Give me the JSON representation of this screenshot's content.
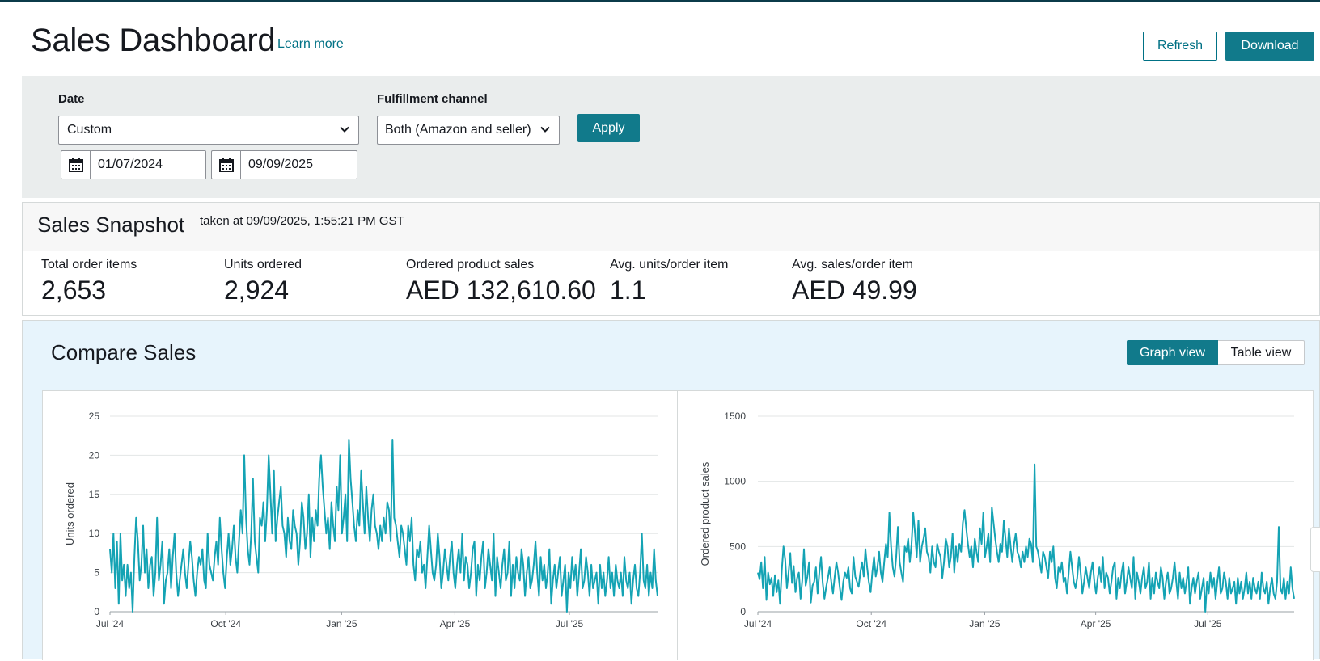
{
  "header": {
    "title": "Sales Dashboard",
    "learn_more": "Learn more",
    "refresh_label": "Refresh",
    "download_label": "Download"
  },
  "filters": {
    "date_label": "Date",
    "date_value": "Custom",
    "start_date": "01/07/2024",
    "end_date": "09/09/2025",
    "channel_label": "Fulfillment channel",
    "channel_value": "Both (Amazon and seller)",
    "apply_label": "Apply"
  },
  "snapshot": {
    "title": "Sales Snapshot",
    "taken_at": "taken at 09/09/2025, 1:55:21 PM GST",
    "metrics": [
      {
        "label": "Total order items",
        "value": "2,653"
      },
      {
        "label": "Units ordered",
        "value": "2,924"
      },
      {
        "label": "Ordered product sales",
        "value": "AED 132,610.60"
      },
      {
        "label": "Avg. units/order item",
        "value": "1.1"
      },
      {
        "label": "Avg. sales/order item",
        "value": "AED 49.99"
      }
    ]
  },
  "compare": {
    "title": "Compare Sales",
    "graph_view": "Graph view",
    "table_view": "Table view"
  },
  "colors": {
    "accent": "#117a8b",
    "line": "#14a3b4"
  },
  "chart_data": [
    {
      "type": "line",
      "ylabel": "Units ordered",
      "xlabel": "",
      "x_ticks": [
        "Jul '24",
        "Oct '24",
        "Jan '25",
        "Apr '25",
        "Jul '25"
      ],
      "y_ticks": [
        0,
        5,
        10,
        15,
        20,
        25
      ],
      "ylim": [
        0,
        25
      ],
      "x_range": [
        "2024-07-01",
        "2025-09-09"
      ],
      "grid": true,
      "series": [
        {
          "values": [
            8,
            5,
            10,
            3,
            9,
            1,
            10,
            4,
            6,
            2,
            6,
            3,
            5,
            0,
            7,
            12,
            9,
            4,
            6,
            11,
            5,
            8,
            3,
            6,
            7,
            2,
            5,
            12,
            4,
            6,
            9,
            1,
            4,
            5,
            8,
            3,
            7,
            10,
            5,
            2,
            4,
            6,
            8,
            5,
            3,
            6,
            9,
            7,
            4,
            2,
            5,
            7,
            6,
            8,
            4,
            3,
            10,
            6,
            5,
            4,
            7,
            9,
            6,
            12,
            8,
            5,
            3,
            7,
            10,
            6,
            8,
            11,
            7,
            5,
            9,
            13,
            10,
            20,
            12,
            8,
            6,
            10,
            17,
            9,
            7,
            5,
            12,
            11,
            14,
            9,
            13,
            20,
            15,
            10,
            18,
            9,
            12,
            14,
            16,
            11,
            10,
            7,
            12,
            9,
            8,
            13,
            11,
            10,
            6,
            9,
            14,
            12,
            8,
            10,
            15,
            7,
            12,
            9,
            13,
            11,
            17,
            20,
            16,
            13,
            10,
            12,
            8,
            14,
            11,
            9,
            16,
            13,
            20,
            10,
            12,
            15,
            9,
            22,
            17,
            14,
            11,
            9,
            13,
            11,
            18,
            14,
            10,
            16,
            12,
            9,
            13,
            15,
            11,
            10,
            8,
            11,
            9,
            12,
            10,
            14,
            13,
            9,
            22,
            12,
            11,
            9,
            7,
            11,
            10,
            8,
            6,
            11,
            9,
            12,
            6,
            4,
            8,
            7,
            9,
            5,
            6,
            3,
            7,
            11,
            8,
            5,
            4,
            6,
            10,
            7,
            3,
            5,
            8,
            6,
            4,
            7,
            9,
            5,
            3,
            6,
            8,
            5,
            10,
            4,
            7,
            6,
            3,
            5,
            8,
            9,
            2,
            6,
            4,
            7,
            9,
            3,
            5,
            8,
            6,
            4,
            10,
            2,
            7,
            5,
            3,
            6,
            8,
            4,
            5,
            9,
            2,
            6,
            3,
            7,
            5,
            4,
            8,
            6,
            2,
            5,
            7,
            3,
            4,
            6,
            9,
            5,
            2,
            7,
            4,
            6,
            3,
            5,
            8,
            1,
            4,
            6,
            3,
            5,
            7,
            2,
            4,
            6,
            0,
            5,
            3,
            7,
            4,
            6,
            2,
            5,
            8,
            3,
            4,
            7,
            5,
            2,
            6,
            3,
            4,
            5,
            1,
            6,
            3,
            5,
            2,
            4,
            7,
            3,
            5,
            2,
            6,
            4,
            3,
            5,
            2,
            7,
            4,
            3,
            5,
            1,
            4,
            6,
            3,
            2,
            5,
            10,
            4,
            3,
            6,
            2,
            5,
            3,
            8,
            4,
            2
          ]
        }
      ]
    },
    {
      "type": "line",
      "ylabel": "Ordered product sales",
      "xlabel": "",
      "x_ticks": [
        "Jul '24",
        "Oct '24",
        "Jan '25",
        "Apr '25",
        "Jul '25"
      ],
      "y_ticks": [
        0,
        500,
        1000,
        1500
      ],
      "ylim": [
        0,
        1500
      ],
      "x_range": [
        "2024-07-01",
        "2025-09-09"
      ],
      "grid": true,
      "series": [
        {
          "values": [
            300,
            250,
            380,
            180,
            420,
            90,
            300,
            210,
            260,
            120,
            280,
            150,
            240,
            60,
            320,
            500,
            400,
            180,
            300,
            450,
            220,
            350,
            150,
            260,
            300,
            100,
            240,
            480,
            200,
            270,
            380,
            70,
            200,
            230,
            340,
            140,
            300,
            420,
            220,
            100,
            190,
            260,
            340,
            230,
            140,
            270,
            380,
            300,
            180,
            90,
            230,
            300,
            260,
            340,
            180,
            140,
            420,
            270,
            230,
            190,
            300,
            380,
            270,
            480,
            340,
            230,
            150,
            300,
            420,
            270,
            340,
            460,
            300,
            230,
            380,
            520,
            420,
            760,
            500,
            340,
            270,
            420,
            650,
            380,
            300,
            230,
            500,
            460,
            560,
            380,
            520,
            760,
            600,
            420,
            700,
            380,
            500,
            560,
            640,
            460,
            420,
            300,
            500,
            380,
            340,
            520,
            460,
            420,
            260,
            380,
            560,
            500,
            340,
            420,
            600,
            300,
            500,
            380,
            520,
            460,
            680,
            780,
            640,
            520,
            420,
            500,
            340,
            560,
            460,
            380,
            640,
            520,
            760,
            420,
            500,
            600,
            380,
            800,
            680,
            560,
            460,
            380,
            520,
            460,
            700,
            560,
            420,
            640,
            500,
            380,
            520,
            600,
            460,
            420,
            340,
            460,
            380,
            500,
            420,
            560,
            520,
            380,
            1130,
            500,
            460,
            380,
            300,
            460,
            420,
            340,
            260,
            460,
            380,
            500,
            260,
            180,
            340,
            300,
            380,
            230,
            260,
            140,
            300,
            460,
            340,
            230,
            180,
            260,
            420,
            300,
            140,
            230,
            340,
            260,
            180,
            300,
            380,
            230,
            140,
            260,
            340,
            230,
            420,
            180,
            300,
            260,
            140,
            230,
            340,
            380,
            100,
            260,
            180,
            300,
            380,
            140,
            230,
            340,
            260,
            180,
            420,
            100,
            300,
            230,
            140,
            260,
            340,
            180,
            230,
            380,
            100,
            260,
            140,
            300,
            230,
            180,
            340,
            260,
            100,
            230,
            300,
            140,
            180,
            260,
            380,
            230,
            100,
            300,
            180,
            260,
            140,
            230,
            340,
            60,
            180,
            260,
            140,
            230,
            300,
            100,
            180,
            260,
            0,
            230,
            140,
            300,
            180,
            260,
            100,
            230,
            340,
            140,
            180,
            300,
            230,
            100,
            260,
            140,
            180,
            230,
            60,
            260,
            140,
            230,
            100,
            180,
            300,
            140,
            230,
            100,
            260,
            180,
            140,
            230,
            100,
            300,
            180,
            140,
            230,
            60,
            180,
            260,
            140,
            100,
            230,
            650,
            180,
            140,
            260,
            100,
            230,
            140,
            340,
            180,
            100
          ]
        }
      ]
    }
  ]
}
